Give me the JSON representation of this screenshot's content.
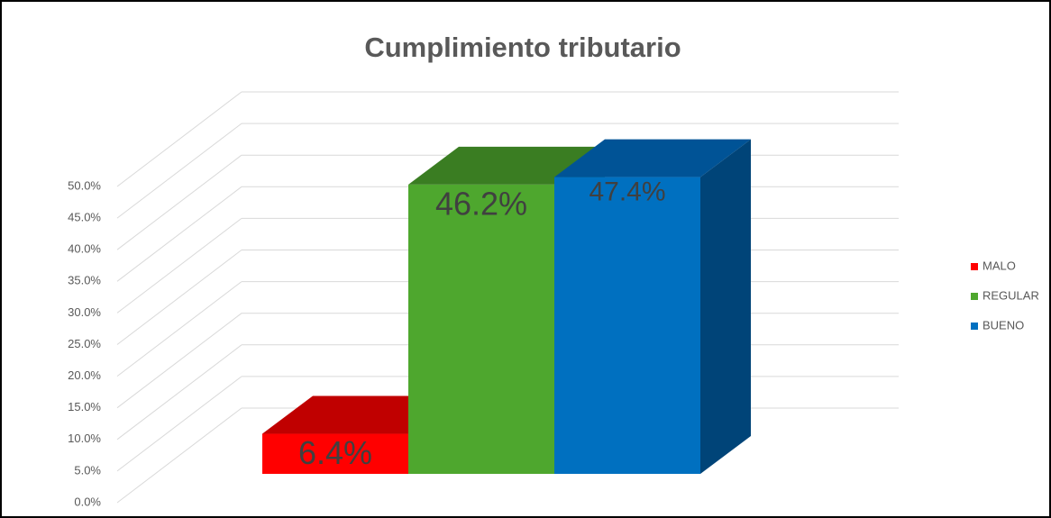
{
  "chart_data": {
    "type": "bar3d",
    "title": "Cumplimiento tributario",
    "categories": [
      null
    ],
    "series": [
      {
        "name": "MALO",
        "color": "#ff0000",
        "top_color": "#c00000",
        "side_color": "#a00000",
        "values": [
          6.4
        ],
        "value_labels": [
          "6.4%"
        ]
      },
      {
        "name": "REGULAR",
        "color": "#4ea72e",
        "top_color": "#3a7d22",
        "side_color": "#2f6a1c",
        "values": [
          46.2
        ],
        "value_labels": [
          "46.2%"
        ]
      },
      {
        "name": "BUENO",
        "color": "#0070c0",
        "top_color": "#005396",
        "side_color": "#004478",
        "values": [
          47.4
        ],
        "value_labels": [
          "47.4%"
        ]
      }
    ],
    "ylim": [
      0,
      50
    ],
    "yticks": [
      {
        "value": 0,
        "label": "0.0%"
      },
      {
        "value": 5,
        "label": "5.0%"
      },
      {
        "value": 10,
        "label": "10.0%"
      },
      {
        "value": 15,
        "label": "15.0%"
      },
      {
        "value": 20,
        "label": "20.0%"
      },
      {
        "value": 25,
        "label": "25.0%"
      },
      {
        "value": 30,
        "label": "30.0%"
      },
      {
        "value": 35,
        "label": "35.0%"
      },
      {
        "value": 40,
        "label": "40.0%"
      },
      {
        "value": 45,
        "label": "45.0%"
      },
      {
        "value": 50,
        "label": "50.0%"
      }
    ],
    "grid": true,
    "legend": "right"
  }
}
